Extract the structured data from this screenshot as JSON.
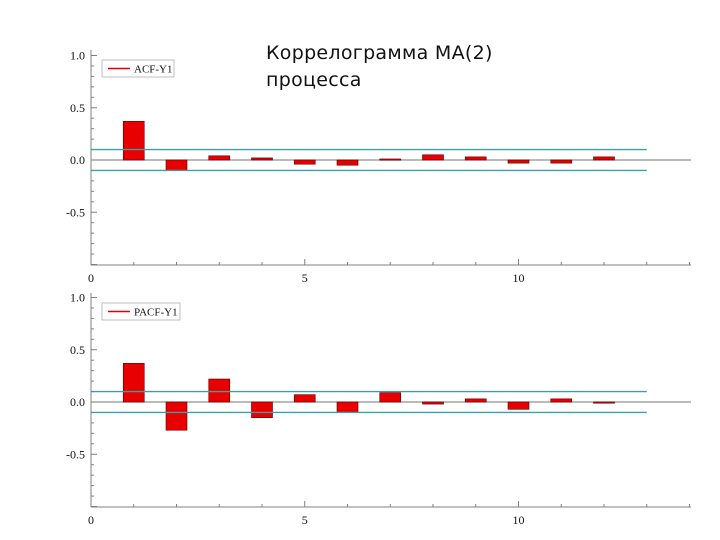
{
  "title": "Коррелограмма МА(2) процесса",
  "colors": {
    "bar": "#e80000",
    "bar_edge": "#5a0000",
    "confidence_band": "#3a9fa6",
    "zero_line": "#909090",
    "axis": "#808080"
  },
  "chart_data": [
    {
      "type": "bar",
      "legend": "ACF-Y1",
      "legend_placement": "top-left",
      "x": [
        1,
        2,
        3,
        4,
        5,
        6,
        7,
        8,
        9,
        10,
        11,
        12
      ],
      "values": [
        0.37,
        -0.1,
        0.04,
        0.02,
        -0.04,
        -0.05,
        0.01,
        0.05,
        0.03,
        -0.03,
        -0.03,
        0.03
      ],
      "confidence_band": 0.1,
      "xlim": [
        0,
        14
      ],
      "ylim": [
        -1,
        1
      ],
      "x_ticks": [
        {
          "v": 0,
          "label": "0"
        },
        {
          "v": 5,
          "label": "5"
        },
        {
          "v": 10,
          "label": "10"
        }
      ],
      "y_ticks": [
        {
          "v": 1,
          "label": "1.0"
        },
        {
          "v": 0.5,
          "label": "0.5"
        },
        {
          "v": 0,
          "label": "0.0"
        },
        {
          "v": -0.5,
          "label": "-0.5"
        }
      ],
      "grid": false
    },
    {
      "type": "bar",
      "legend": "PACF-Y1",
      "legend_placement": "top-left",
      "x": [
        1,
        2,
        3,
        4,
        5,
        6,
        7,
        8,
        9,
        10,
        11,
        12
      ],
      "values": [
        0.37,
        -0.27,
        0.22,
        -0.15,
        0.07,
        -0.1,
        0.09,
        -0.02,
        0.03,
        -0.07,
        0.03,
        0.0
      ],
      "confidence_band": 0.1,
      "xlim": [
        0,
        14
      ],
      "ylim": [
        -1,
        1
      ],
      "x_ticks": [
        {
          "v": 0,
          "label": "0"
        },
        {
          "v": 5,
          "label": "5"
        },
        {
          "v": 10,
          "label": "10"
        }
      ],
      "y_ticks": [
        {
          "v": 1,
          "label": "1.0"
        },
        {
          "v": 0.5,
          "label": "0.5"
        },
        {
          "v": 0,
          "label": "0.0"
        },
        {
          "v": -0.5,
          "label": "-0.5"
        }
      ],
      "grid": false
    }
  ]
}
